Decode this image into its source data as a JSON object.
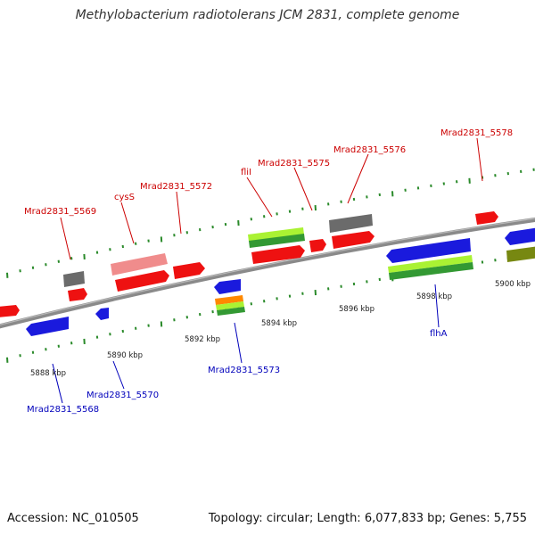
{
  "title": "Methylobacterium radiotolerans JCM 2831, complete genome",
  "footer": {
    "accession_label": "Accession:",
    "accession": "NC_010505",
    "topology_label": "Topology:",
    "topology": "circular",
    "length_label": "Length:",
    "length": "6,077,833 bp",
    "genes_label": "Genes:",
    "genes": "5,755"
  },
  "colors": {
    "forward_gene": "#ee1111",
    "reverse_gene": "#1a1add",
    "forward_label": "#cc0000",
    "reverse_label": "#0000bb",
    "pseudo_gene": "#6b6b6b",
    "highlight_gene": "#f08c8c",
    "rna_light": "#aaf233",
    "rna_dark": "#339933",
    "olive_gene": "#778811",
    "orange_gene": "#ff8800",
    "backbone": "#8a8a8a",
    "tick": "#2a8a2a"
  },
  "axis_labels": [
    "5888 kbp",
    "5890 kbp",
    "5892 kbp",
    "5894 kbp",
    "5896 kbp",
    "5898 kbp",
    "5900 kbp"
  ],
  "gene_labels": {
    "forward": [
      "Mrad2831_5569",
      "cysS",
      "Mrad2831_5572",
      "fliI",
      "Mrad2831_5575",
      "Mrad2831_5576",
      "Mrad2831_5578"
    ],
    "reverse": [
      "Mrad2831_5568",
      "Mrad2831_5570",
      "Mrad2831_5573",
      "flhA"
    ]
  }
}
